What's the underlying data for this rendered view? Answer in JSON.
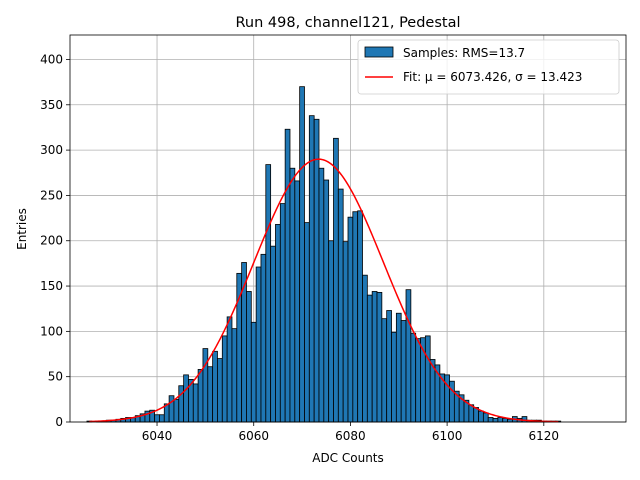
{
  "chart_data": {
    "type": "bar",
    "title": "Run 498, channel121, Pedestal",
    "xlabel": "ADC Counts",
    "ylabel": "Entries",
    "xlim": [
      6022,
      6137
    ],
    "ylim": [
      0,
      427
    ],
    "xticks": [
      6040,
      6060,
      6080,
      6100,
      6120
    ],
    "yticks": [
      0,
      50,
      100,
      150,
      200,
      250,
      300,
      350,
      400
    ],
    "grid": true,
    "legend_placement": "top-right",
    "bin_width": 1,
    "series": [
      {
        "name": "Samples: RMS=13.7",
        "color": "#1f77b4",
        "bin_centers": [
          6026,
          6027,
          6028,
          6029,
          6030,
          6031,
          6032,
          6033,
          6034,
          6035,
          6036,
          6037,
          6038,
          6039,
          6040,
          6041,
          6042,
          6043,
          6044,
          6045,
          6046,
          6047,
          6048,
          6049,
          6050,
          6051,
          6052,
          6053,
          6054,
          6055,
          6056,
          6057,
          6058,
          6059,
          6060,
          6061,
          6062,
          6063,
          6064,
          6065,
          6066,
          6067,
          6068,
          6069,
          6070,
          6071,
          6072,
          6073,
          6074,
          6075,
          6076,
          6077,
          6078,
          6079,
          6080,
          6081,
          6082,
          6083,
          6084,
          6085,
          6086,
          6087,
          6088,
          6089,
          6090,
          6091,
          6092,
          6093,
          6094,
          6095,
          6096,
          6097,
          6098,
          6099,
          6100,
          6101,
          6102,
          6103,
          6104,
          6105,
          6106,
          6107,
          6108,
          6109,
          6110,
          6111,
          6112,
          6113,
          6114,
          6115,
          6116,
          6117,
          6118,
          6119,
          6120,
          6121,
          6122,
          6123
        ],
        "values": [
          1,
          0,
          1,
          1,
          2,
          2,
          3,
          4,
          5,
          5,
          7,
          9,
          12,
          13,
          8,
          8,
          20,
          29,
          25,
          40,
          52,
          47,
          42,
          58,
          81,
          61,
          78,
          70,
          95,
          116,
          103,
          164,
          176,
          144,
          110,
          171,
          185,
          284,
          194,
          218,
          241,
          323,
          280,
          266,
          370,
          220,
          338,
          334,
          280,
          267,
          200,
          313,
          257,
          199,
          226,
          232,
          233,
          162,
          140,
          144,
          143,
          114,
          123,
          99,
          120,
          112,
          146,
          98,
          92,
          93,
          95,
          69,
          63,
          53,
          52,
          45,
          34,
          30,
          24,
          19,
          16,
          12,
          10,
          5,
          4,
          5,
          4,
          3,
          6,
          4,
          6,
          2,
          2,
          2,
          1,
          1,
          1,
          1
        ]
      },
      {
        "name": "Fit: μ = 6073.426, σ = 13.423",
        "type": "line",
        "color": "#ff0000",
        "mu": 6073.426,
        "sigma": 13.423,
        "amplitude": 290,
        "x_range": [
          6026,
          6123
        ]
      }
    ]
  }
}
